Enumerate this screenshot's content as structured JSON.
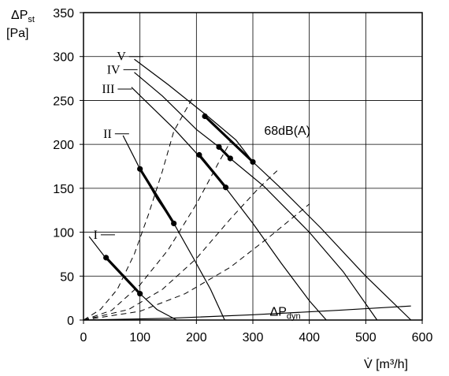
{
  "chart_data": {
    "type": "line",
    "title": "",
    "ylabel": {
      "symbol": "ΔP",
      "sub": "st",
      "unit": "[Pa]"
    },
    "xlabel": {
      "symbol": "V̇",
      "unit": "[m³/h]"
    },
    "xlim": [
      0,
      600
    ],
    "ylim": [
      0,
      350
    ],
    "x_ticks": [
      "0",
      "100",
      "200",
      "300",
      "400",
      "500",
      "600"
    ],
    "y_ticks": [
      "0",
      "50",
      "100",
      "150",
      "200",
      "250",
      "300",
      "350"
    ],
    "grid": true,
    "series": [
      {
        "name": "I",
        "style": "solid",
        "points": [
          [
            10,
            95
          ],
          [
            40,
            70
          ],
          [
            100,
            30
          ],
          [
            130,
            12
          ],
          [
            165,
            0
          ]
        ]
      },
      {
        "name": "II",
        "style": "solid",
        "points": [
          [
            70,
            210
          ],
          [
            100,
            172
          ],
          [
            130,
            138
          ],
          [
            160,
            110
          ],
          [
            195,
            70
          ],
          [
            225,
            35
          ],
          [
            250,
            0
          ]
        ]
      },
      {
        "name": "III",
        "style": "solid",
        "points": [
          [
            85,
            265
          ],
          [
            120,
            243
          ],
          [
            160,
            218
          ],
          [
            200,
            190
          ],
          [
            250,
            152
          ],
          [
            300,
            110
          ],
          [
            350,
            65
          ],
          [
            400,
            22
          ],
          [
            430,
            0
          ]
        ]
      },
      {
        "name": "IV",
        "style": "solid",
        "points": [
          [
            90,
            282
          ],
          [
            140,
            255
          ],
          [
            200,
            217
          ],
          [
            240,
            197
          ],
          [
            260,
            184
          ],
          [
            320,
            152
          ],
          [
            400,
            100
          ],
          [
            460,
            55
          ],
          [
            520,
            0
          ]
        ]
      },
      {
        "name": "V",
        "style": "solid",
        "points": [
          [
            90,
            297
          ],
          [
            150,
            268
          ],
          [
            220,
            232
          ],
          [
            270,
            205
          ],
          [
            300,
            180
          ],
          [
            350,
            150
          ],
          [
            420,
            105
          ],
          [
            500,
            50
          ],
          [
            580,
            0
          ]
        ]
      },
      {
        "name": "ΔPdyn",
        "style": "solid",
        "points": [
          [
            0,
            0
          ],
          [
            150,
            2
          ],
          [
            300,
            6
          ],
          [
            450,
            11
          ],
          [
            580,
            16
          ]
        ]
      }
    ],
    "system_curves": [
      {
        "style": "dashed",
        "points": [
          [
            0,
            0
          ],
          [
            30,
            12
          ],
          [
            60,
            35
          ],
          [
            90,
            75
          ],
          [
            115,
            120
          ],
          [
            140,
            170
          ],
          [
            160,
            215
          ],
          [
            195,
            255
          ]
        ]
      },
      {
        "style": "dashed",
        "points": [
          [
            0,
            0
          ],
          [
            50,
            11
          ],
          [
            100,
            40
          ],
          [
            150,
            80
          ],
          [
            200,
            132
          ],
          [
            240,
            180
          ],
          [
            262,
            205
          ]
        ]
      },
      {
        "style": "dashed",
        "points": [
          [
            0,
            0
          ],
          [
            80,
            12
          ],
          [
            140,
            35
          ],
          [
            200,
            70
          ],
          [
            260,
            115
          ],
          [
            310,
            150
          ],
          [
            343,
            170
          ]
        ]
      },
      {
        "style": "dashed",
        "points": [
          [
            0,
            0
          ],
          [
            100,
            10
          ],
          [
            180,
            30
          ],
          [
            260,
            60
          ],
          [
            330,
            95
          ],
          [
            400,
            132
          ]
        ]
      }
    ],
    "operating_segments": [
      {
        "points": [
          [
            40,
            71
          ],
          [
            100,
            30
          ]
        ]
      },
      {
        "points": [
          [
            100,
            172
          ],
          [
            160,
            110
          ]
        ]
      },
      {
        "points": [
          [
            205,
            188
          ],
          [
            252,
            151
          ]
        ]
      },
      {
        "points": [
          [
            240,
            197
          ],
          [
            260,
            184
          ]
        ]
      },
      {
        "points": [
          [
            215,
            232
          ],
          [
            300,
            180
          ]
        ]
      }
    ],
    "curve_labels": [
      {
        "text": "I",
        "x": 25,
        "y": 97
      },
      {
        "text": "II",
        "x": 50,
        "y": 212
      },
      {
        "text": "III",
        "x": 55,
        "y": 263
      },
      {
        "text": "IV",
        "x": 65,
        "y": 285
      },
      {
        "text": "V",
        "x": 75,
        "y": 300
      }
    ],
    "annotations": [
      {
        "text": "68dB(A)",
        "x": 320,
        "y": 211
      },
      {
        "text": "ΔP",
        "sub": "dyn",
        "x": 330,
        "y": 5
      }
    ]
  }
}
